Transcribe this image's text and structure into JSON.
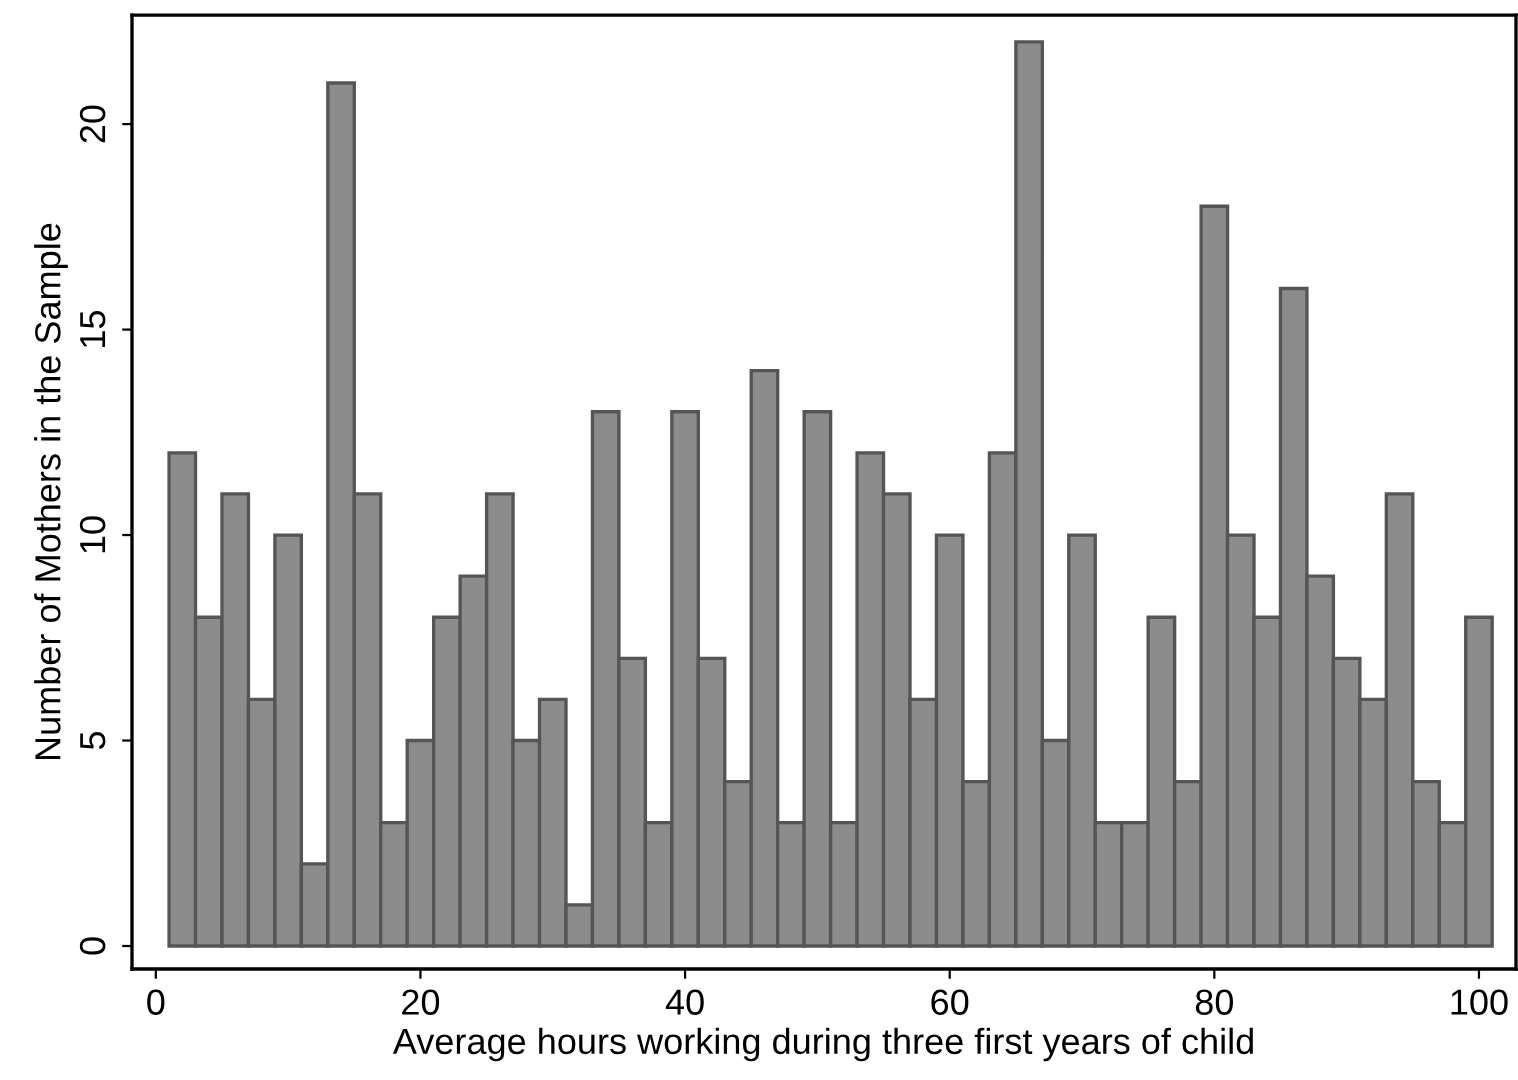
{
  "chart_data": {
    "type": "histogram",
    "xlabel": "Average hours working during three first years of child",
    "ylabel": "Number of Mothers in the Sample",
    "bins": [
      1,
      3,
      5,
      7,
      9,
      11,
      13,
      15,
      17,
      19,
      21,
      23,
      25,
      27,
      29,
      31,
      33,
      35,
      37,
      39,
      41,
      43,
      45,
      47,
      49,
      51,
      53,
      55,
      57,
      59,
      61,
      63,
      65,
      67,
      69,
      71,
      73,
      75,
      77,
      79,
      81,
      83,
      85,
      87,
      89,
      91,
      93,
      95,
      97,
      99,
      101
    ],
    "values": [
      12,
      8,
      11,
      6,
      10,
      2,
      21,
      11,
      3,
      5,
      8,
      9,
      11,
      5,
      6,
      1,
      13,
      7,
      3,
      13,
      7,
      4,
      14,
      3,
      13,
      3,
      12,
      11,
      6,
      10,
      4,
      12,
      22,
      5,
      10,
      3,
      3,
      8,
      4,
      18,
      10,
      8,
      16,
      9,
      7,
      6,
      11,
      4,
      3,
      8
    ],
    "color": "#8c8c8c",
    "xlim": [
      -1.8,
      102.8
    ],
    "ylim": [
      -0.56,
      22.65
    ],
    "xticks": [
      0,
      20,
      40,
      60,
      80,
      100
    ],
    "yticks": [
      0,
      5,
      10,
      15,
      20
    ],
    "grid": false
  }
}
